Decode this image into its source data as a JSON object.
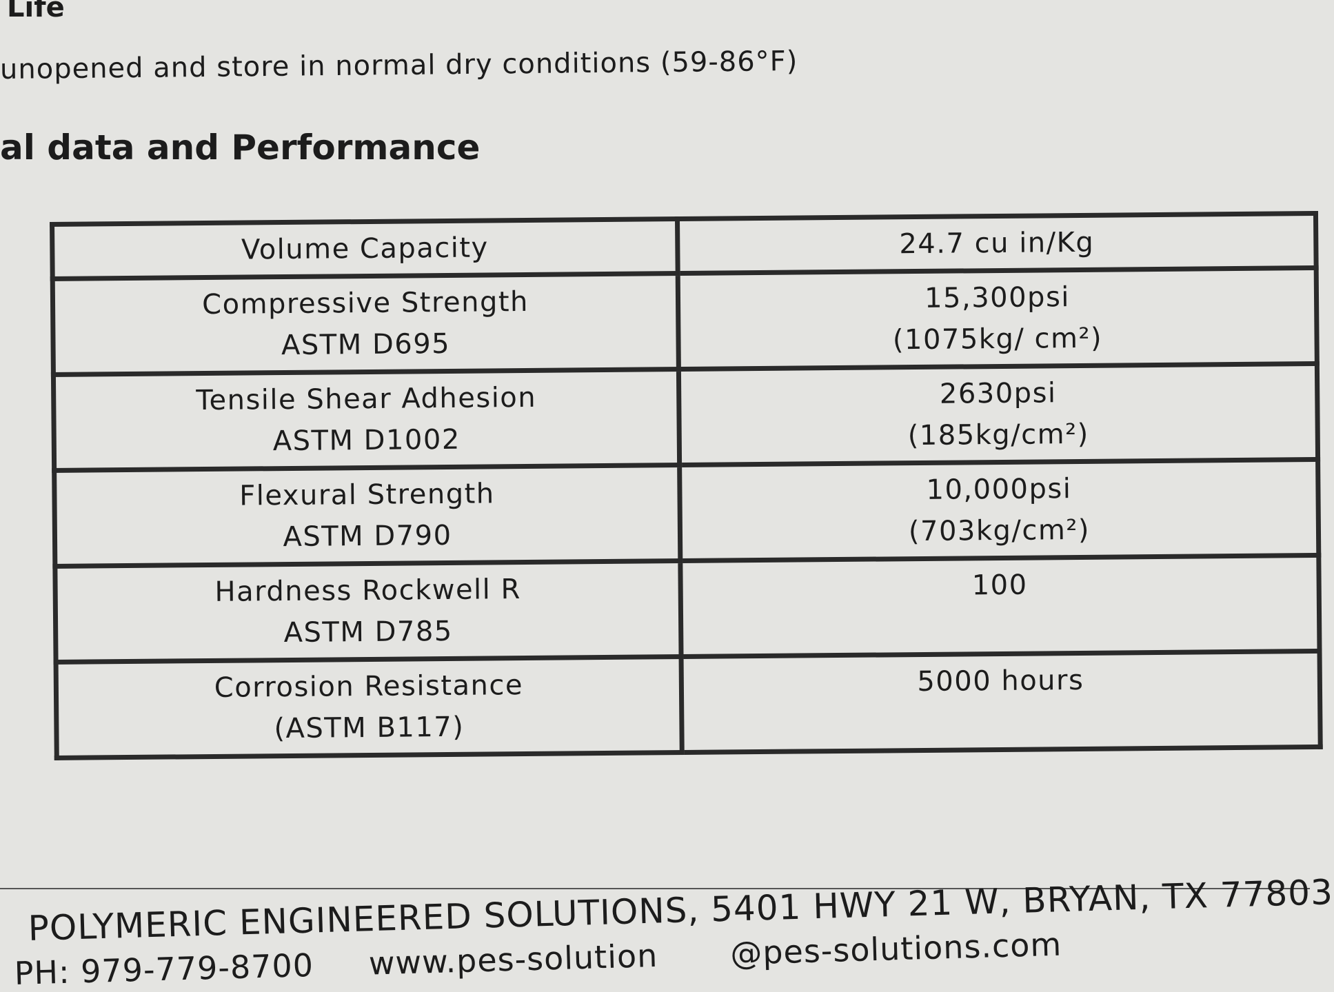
{
  "header": {
    "shelf_life_heading": "Life",
    "storage_note": "unopened and store in normal dry conditions (59-86°F)"
  },
  "section": {
    "title": "al data and Performance"
  },
  "table": {
    "rows": [
      {
        "property": [
          "Volume Capacity"
        ],
        "value": [
          "24.7 cu in/Kg"
        ]
      },
      {
        "property": [
          "Compressive Strength",
          "ASTM D695"
        ],
        "value": [
          "15,300psi",
          "(1075kg/ cm²)"
        ]
      },
      {
        "property": [
          "Tensile Shear Adhesion",
          "ASTM D1002"
        ],
        "value": [
          "2630psi",
          "(185kg/cm²)"
        ]
      },
      {
        "property": [
          "Flexural Strength",
          "ASTM D790"
        ],
        "value": [
          "10,000psi",
          "(703kg/cm²)"
        ]
      },
      {
        "property": [
          "Hardness Rockwell R",
          "ASTM D785"
        ],
        "value": [
          "100"
        ]
      },
      {
        "property": [
          "Corrosion Resistance",
          "(ASTM B117)"
        ],
        "value": [
          "5000 hours"
        ]
      }
    ]
  },
  "footer": {
    "address": "POLYMERIC ENGINEERED SOLUTIONS, 5401 HWY 21 W, BRYAN, TX 77803",
    "phone": "PH: 979-779-8700",
    "website": "www.pes-solution",
    "email": "@pes-solutions.com"
  }
}
